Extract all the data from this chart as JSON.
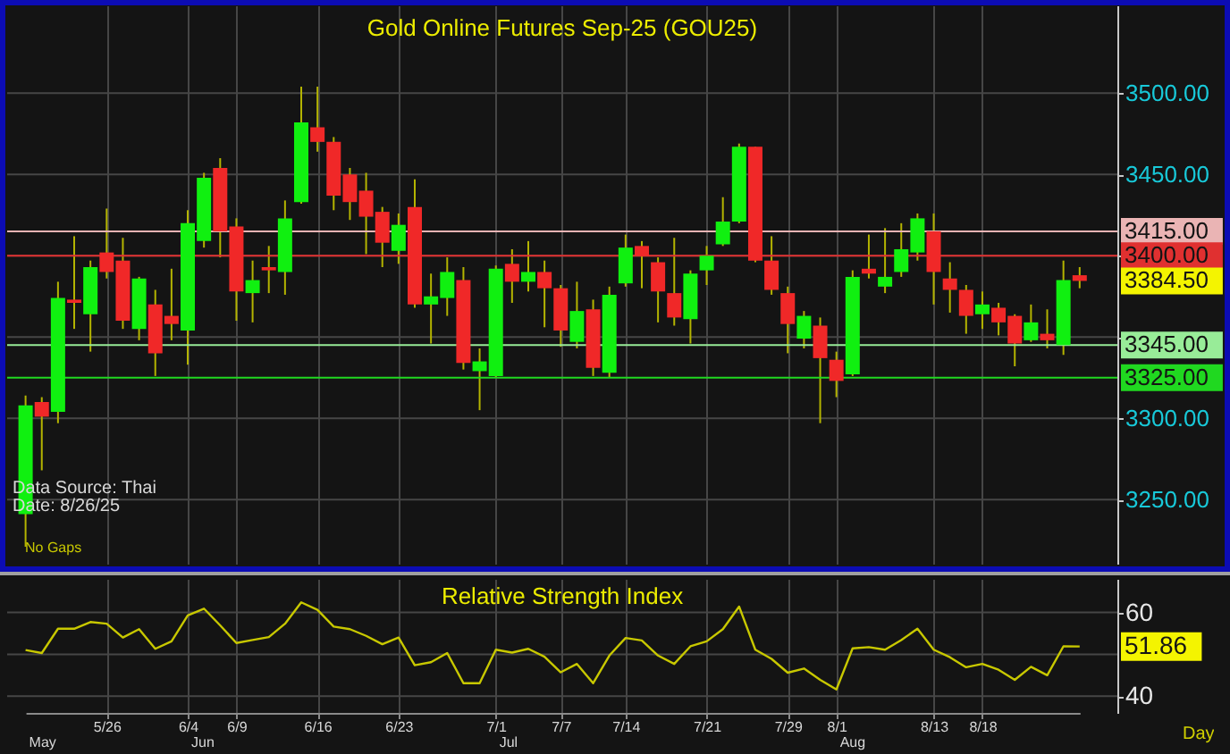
{
  "chart_data": [
    {
      "type": "candlestick",
      "title": "Gold Online Futures Sep-25 (GOU25)",
      "categories": [
        null,
        null,
        null,
        null,
        null,
        null,
        null,
        null,
        null,
        null,
        null,
        null,
        null,
        null,
        null,
        null,
        null,
        null,
        null,
        null,
        null,
        null,
        null,
        null,
        null,
        null,
        null,
        null,
        null,
        null,
        null,
        null,
        null,
        null,
        null,
        null,
        null,
        null,
        null,
        null,
        null,
        null,
        null,
        null,
        null,
        null,
        null,
        null,
        null,
        null,
        null,
        null,
        null,
        null,
        null,
        null,
        null,
        null,
        null,
        null,
        null,
        null,
        null,
        null,
        null,
        null
      ],
      "ohlc": [
        [
          3241,
          3314,
          3221,
          3308
        ],
        [
          3310,
          3313,
          3268,
          3301
        ],
        [
          3304,
          3384,
          3297,
          3374
        ],
        [
          3373,
          3412,
          3355,
          3371
        ],
        [
          3364,
          3397,
          3341,
          3393
        ],
        [
          3402,
          3429,
          3386,
          3390
        ],
        [
          3397,
          3411,
          3355,
          3360
        ],
        [
          3355,
          3387,
          3348,
          3386
        ],
        [
          3370,
          3379,
          3326,
          3340
        ],
        [
          3363,
          3392,
          3348,
          3358
        ],
        [
          3354,
          3428,
          3333,
          3420
        ],
        [
          3409,
          3451,
          3405,
          3448
        ],
        [
          3454,
          3460,
          3399,
          3415
        ],
        [
          3418,
          3423,
          3360,
          3378
        ],
        [
          3377,
          3397,
          3359,
          3385
        ],
        [
          3393,
          3406,
          3377,
          3391
        ],
        [
          3390,
          3434,
          3376,
          3423
        ],
        [
          3433,
          3504,
          3432,
          3482
        ],
        [
          3479,
          3504,
          3464,
          3470
        ],
        [
          3470,
          3473,
          3428,
          3437
        ],
        [
          3450,
          3454,
          3422,
          3433
        ],
        [
          3440,
          3451,
          3401,
          3424
        ],
        [
          3427,
          3430,
          3393,
          3408
        ],
        [
          3403,
          3426,
          3395,
          3419
        ],
        [
          3430,
          3447,
          3368,
          3370
        ],
        [
          3370,
          3389,
          3346,
          3375
        ],
        [
          3374,
          3399,
          3363,
          3390
        ],
        [
          3385,
          3393,
          3330,
          3334
        ],
        [
          3329,
          3343,
          3305,
          3335
        ],
        [
          3326,
          3394,
          3325,
          3392
        ],
        [
          3395,
          3404,
          3371,
          3384
        ],
        [
          3384,
          3409,
          3378,
          3390
        ],
        [
          3390,
          3397,
          3356,
          3380
        ],
        [
          3380,
          3382,
          3344,
          3354
        ],
        [
          3347,
          3384,
          3343,
          3366
        ],
        [
          3367,
          3373,
          3326,
          3331
        ],
        [
          3328,
          3381,
          3325,
          3376
        ],
        [
          3383,
          3413,
          3381,
          3405
        ],
        [
          3406,
          3409,
          3380,
          3400
        ],
        [
          3396,
          3399,
          3359,
          3378
        ],
        [
          3377,
          3411,
          3357,
          3362
        ],
        [
          3361,
          3391,
          3346,
          3389
        ],
        [
          3391,
          3406,
          3382,
          3400
        ],
        [
          3407,
          3436,
          3406,
          3421
        ],
        [
          3421,
          3469,
          3420,
          3467
        ],
        [
          3467,
          3467,
          3396,
          3397
        ],
        [
          3397,
          3412,
          3376,
          3379
        ],
        [
          3377,
          3381,
          3340,
          3358
        ],
        [
          3349,
          3366,
          3343,
          3363
        ],
        [
          3357,
          3362,
          3297,
          3337
        ],
        [
          3336,
          3341,
          3313,
          3323
        ],
        [
          3327,
          3391,
          3326,
          3387
        ],
        [
          3392,
          3413,
          3386,
          3389
        ],
        [
          3381,
          3417,
          3377,
          3387
        ],
        [
          3390,
          3420,
          3387,
          3404
        ],
        [
          3402,
          3426,
          3397,
          3423
        ],
        [
          3415,
          3426,
          3370,
          3390
        ],
        [
          3386,
          3396,
          3365,
          3379
        ],
        [
          3379,
          3382,
          3352,
          3363
        ],
        [
          3364,
          3378,
          3355,
          3370
        ],
        [
          3368,
          3371,
          3351,
          3359
        ],
        [
          3363,
          3364,
          3332,
          3346
        ],
        [
          3348,
          3370,
          3347,
          3359
        ],
        [
          3352,
          3367,
          3343,
          3348
        ],
        [
          3345,
          3397,
          3339,
          3385
        ],
        [
          3388,
          3393,
          3380,
          3384.5
        ]
      ],
      "colors": [
        "#10f010",
        "#f02828",
        "#10f010",
        "#f02828",
        "#10f010",
        "#f02828",
        "#f02828",
        "#10f010",
        "#f02828",
        "#f02828",
        "#10f010",
        "#10f010",
        "#f02828",
        "#f02828",
        "#10f010",
        "#f02828",
        "#10f010",
        "#10f010",
        "#f02828",
        "#f02828",
        "#f02828",
        "#f02828",
        "#f02828",
        "#10f010",
        "#f02828",
        "#10f010",
        "#10f010",
        "#f02828",
        "#10f010",
        "#10f010",
        "#f02828",
        "#10f010",
        "#f02828",
        "#f02828",
        "#10f010",
        "#f02828",
        "#10f010",
        "#10f010",
        "#f02828",
        "#f02828",
        "#f02828",
        "#10f010",
        "#10f010",
        "#10f010",
        "#10f010",
        "#f02828",
        "#f02828",
        "#f02828",
        "#10f010",
        "#f02828",
        "#f02828",
        "#10f010",
        "#f02828",
        "#10f010",
        "#10f010",
        "#10f010",
        "#f02828",
        "#f02828",
        "#f02828",
        "#10f010",
        "#f02828",
        "#f02828",
        "#10f010",
        "#f02828",
        "#10f010",
        "#f02828"
      ],
      "ylim": [
        3210,
        3554
      ],
      "yticks": [
        {
          "value": 3250,
          "label": "3250.00"
        },
        {
          "value": 3300,
          "label": "3300.00"
        },
        {
          "value": 3350,
          "label": null
        },
        {
          "value": 3400,
          "label": null
        },
        {
          "value": 3450,
          "label": "3450.00"
        },
        {
          "value": 3500,
          "label": "3500.00"
        }
      ],
      "grid": true,
      "tick_labels": "y",
      "ref_lines": [
        {
          "axis": "y",
          "value": 3415,
          "label": "3415.00",
          "color": "#eab4b4"
        },
        {
          "axis": "y",
          "value": 3400,
          "label": "3400.00",
          "color": "#e03030"
        },
        {
          "axis": "y",
          "value": 3345,
          "label": "3345.00",
          "color": "#98ec98"
        },
        {
          "axis": "y",
          "value": 3325,
          "label": "3325.00",
          "color": "#20d820"
        }
      ],
      "annotations": [
        "Data Source: Thai",
        "Date: 8/26/25",
        "No Gaps",
        "3384.50"
      ]
    },
    {
      "type": "line",
      "title": "Relative Strength Index",
      "xlabel": "Day",
      "categories": [
        null,
        null,
        null,
        null,
        null,
        "5/26",
        null,
        null,
        null,
        null,
        "6/4",
        null,
        null,
        "6/9",
        null,
        null,
        null,
        null,
        "6/16",
        null,
        null,
        null,
        null,
        "6/23",
        null,
        null,
        null,
        null,
        null,
        "7/1",
        null,
        null,
        null,
        "7/7",
        null,
        null,
        null,
        "7/14",
        null,
        null,
        null,
        null,
        "7/21",
        null,
        null,
        null,
        null,
        "7/29",
        null,
        null,
        "8/1",
        null,
        null,
        null,
        null,
        null,
        "8/13",
        null,
        null,
        "8/18",
        null,
        null,
        null,
        null,
        null,
        null
      ],
      "series": [
        {
          "color": "#c8c800",
          "values": [
            51.0,
            50.3,
            56.1,
            56.1,
            57.7,
            57.3,
            54.0,
            56.0,
            51.3,
            53.1,
            59.3,
            60.9,
            56.9,
            52.7,
            53.4,
            54.1,
            57.3,
            62.4,
            60.6,
            56.6,
            56.0,
            54.4,
            52.4,
            54.0,
            47.4,
            48.1,
            50.3,
            43.1,
            43.1,
            51.1,
            50.4,
            51.3,
            49.4,
            45.7,
            47.7,
            43.1,
            49.7,
            53.9,
            53.3,
            49.7,
            47.7,
            51.9,
            53.1,
            56.0,
            61.4,
            51.1,
            48.9,
            45.6,
            46.6,
            43.9,
            41.6,
            51.4,
            51.7,
            51.1,
            53.4,
            56.1,
            51.1,
            49.3,
            46.9,
            47.7,
            46.3,
            43.9,
            47.0,
            45.0,
            51.9,
            51.86
          ]
        }
      ],
      "ylim": [
        36,
        68
      ],
      "yticks": [
        40,
        {
          "value": 50,
          "label": null
        },
        60
      ],
      "grid": true,
      "annotations": [
        "May",
        "Jun",
        "Jul",
        "Aug",
        "51.86"
      ]
    }
  ]
}
